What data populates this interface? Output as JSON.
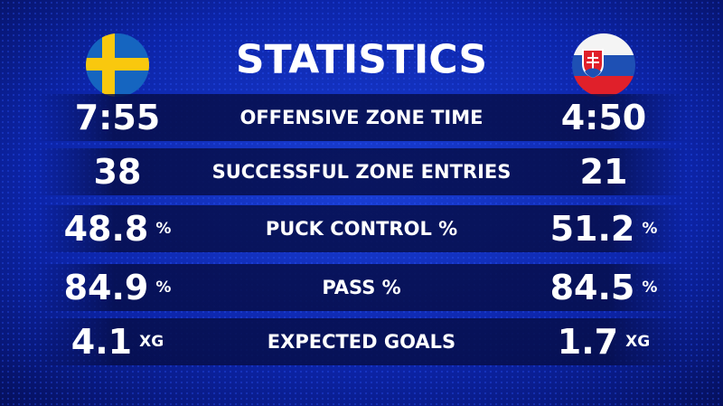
{
  "title": "STATISTICS",
  "rows": [
    {
      "home": "7:55",
      "label": "OFFENSIVE ZONE TIME",
      "away": "4:50"
    },
    {
      "home": "38",
      "label": "SUCCESSFUL ZONE ENTRIES",
      "away": "21"
    },
    {
      "home": "48.8",
      "home_unit": "%",
      "label": "PUCK CONTROL %",
      "away": "51.2",
      "away_unit": "%"
    },
    {
      "home": "84.9",
      "home_unit": "%",
      "label": "PASS %",
      "away": "84.5",
      "away_unit": "%"
    },
    {
      "home": "4.1",
      "home_unit": "XG",
      "label": "EXPECTED GOALS",
      "away": "1.7",
      "away_unit": "XG"
    }
  ]
}
